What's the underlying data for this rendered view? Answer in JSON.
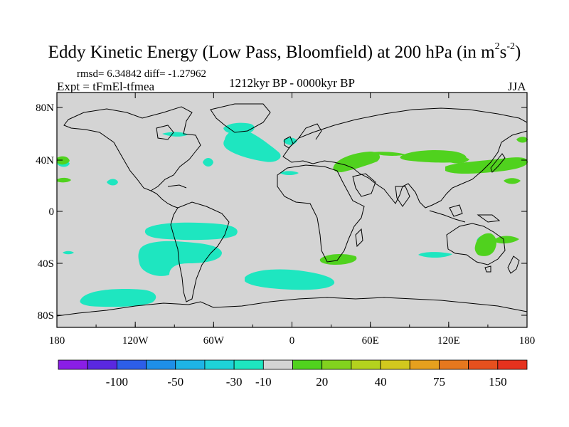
{
  "title": {
    "main": "Eddy Kinetic Energy (Low Pass, Bloomfield) at 200 hPa (in m",
    "exp1": "2",
    "mid": "s",
    "exp2": "-2",
    "close": ")"
  },
  "stats": "rmsd= 6.34842 diff= -1.27962",
  "expt": "Expt = tFmEl-tfmea",
  "period": "1212kyr BP - 0000kyr BP",
  "season": "JJA",
  "axes": {
    "x_ticks": [
      "180",
      "120W",
      "60W",
      "0",
      "60E",
      "120E",
      "180"
    ],
    "y_ticks": [
      "80N",
      "40N",
      "0",
      "40S",
      "80S"
    ]
  },
  "colorbar": {
    "colors": [
      "#8a1ee6",
      "#5a28e0",
      "#2d5ee8",
      "#1e8fe8",
      "#1eb4e6",
      "#1ed2d8",
      "#1ee6c0",
      "#d4d4d4",
      "#50d21e",
      "#82d21e",
      "#b4d21e",
      "#d2c81e",
      "#e6a01e",
      "#e6781e",
      "#e6501e",
      "#e6321e"
    ],
    "labels": [
      "-100",
      "-50",
      "-30",
      "-10",
      "20",
      "40",
      "75",
      "150"
    ]
  },
  "colors": {
    "ocean_land_fill": "#d4d4d4",
    "negative": "#1ee6c0",
    "positive": "#50d21e",
    "coast": "#000000"
  }
}
